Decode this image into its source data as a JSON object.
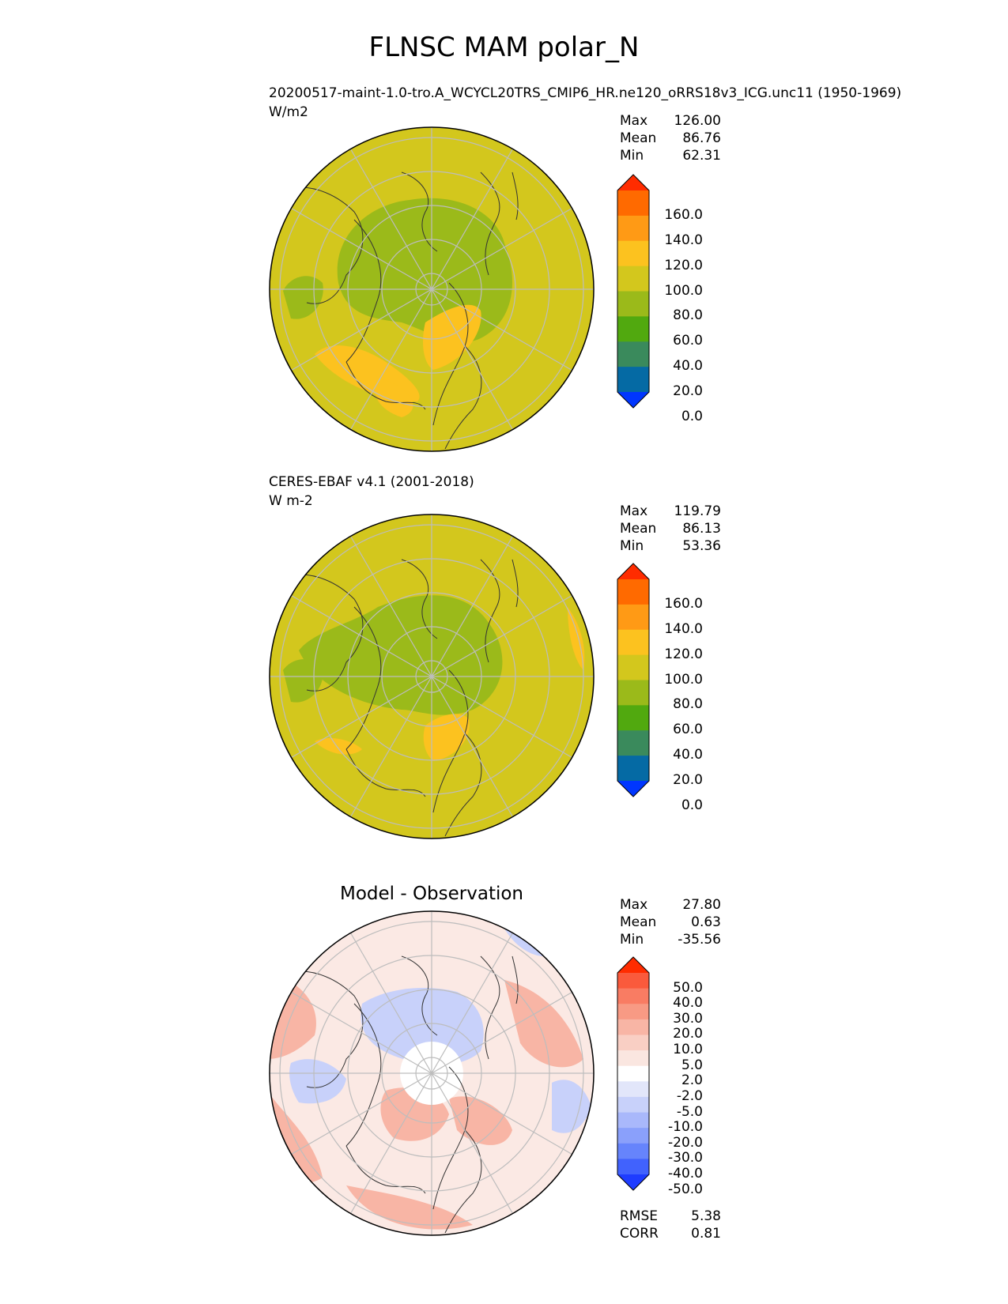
{
  "figure": {
    "title": "FLNSC MAM polar_N"
  },
  "panels": [
    {
      "id": "model",
      "name": "20200517-maint-1.0-tro.A_WCYCL20TRS_CMIP6_HR.ne120_oRRS18v3_ICG.unc11 (1950-1969)",
      "units": "W/m2",
      "stats": {
        "max_label": "Max",
        "max": "126.00",
        "mean_label": "Mean",
        "mean": "86.76",
        "min_label": "Min",
        "min": "62.31"
      },
      "colorbar": {
        "levels": [
          "160.0",
          "140.0",
          "120.0",
          "100.0",
          "80.0",
          "60.0",
          "40.0",
          "20.0",
          "0.0"
        ],
        "colors": [
          "#ff2c00",
          "#ff6a00",
          "#ff9a15",
          "#fcc21f",
          "#d3c71d",
          "#9bba1a",
          "#51a90f",
          "#3a8a5c",
          "#056aa4",
          "#0036ff"
        ]
      }
    },
    {
      "id": "obs",
      "name": "CERES-EBAF v4.1 (2001-2018)",
      "units": "W m-2",
      "stats": {
        "max_label": "Max",
        "max": "119.79",
        "mean_label": "Mean",
        "mean": "86.13",
        "min_label": "Min",
        "min": "53.36"
      },
      "colorbar": {
        "levels": [
          "160.0",
          "140.0",
          "120.0",
          "100.0",
          "80.0",
          "60.0",
          "40.0",
          "20.0",
          "0.0"
        ],
        "colors": [
          "#ff2c00",
          "#ff6a00",
          "#ff9a15",
          "#fcc21f",
          "#d3c71d",
          "#9bba1a",
          "#51a90f",
          "#3a8a5c",
          "#056aa4",
          "#0036ff"
        ]
      }
    },
    {
      "id": "diff",
      "title": "Model - Observation",
      "stats": {
        "max_label": "Max",
        "max": "27.80",
        "mean_label": "Mean",
        "mean": "0.63",
        "min_label": "Min",
        "min": "-35.56"
      },
      "metrics": {
        "rmse_label": "RMSE",
        "rmse": "5.38",
        "corr_label": "CORR",
        "corr": "0.81"
      },
      "colorbar": {
        "levels": [
          "50.0",
          "40.0",
          "30.0",
          "20.0",
          "10.0",
          "5.0",
          "2.0",
          "-2.0",
          "-5.0",
          "-10.0",
          "-20.0",
          "-30.0",
          "-40.0",
          "-50.0"
        ],
        "colors": [
          "#ff2c00",
          "#fa5a3c",
          "#f97c63",
          "#f89a84",
          "#f8b5a5",
          "#f9cfc4",
          "#fae6e0",
          "#ffffff",
          "#e2e6fa",
          "#c8d1fa",
          "#a9b8fb",
          "#8aa0fb",
          "#6684fc",
          "#4162fd",
          "#1e3cff"
        ]
      }
    }
  ],
  "map_colors": {
    "background_model": "#d3c71d",
    "background_obs": "#d3c71d",
    "arctic_green": "#9bba1a",
    "warm_patch": "#fcc21f",
    "diff_red": "#f8b5a5",
    "diff_blue": "#c8d1fa",
    "gridline": "#bdbdbd",
    "coastline": "#333333"
  }
}
